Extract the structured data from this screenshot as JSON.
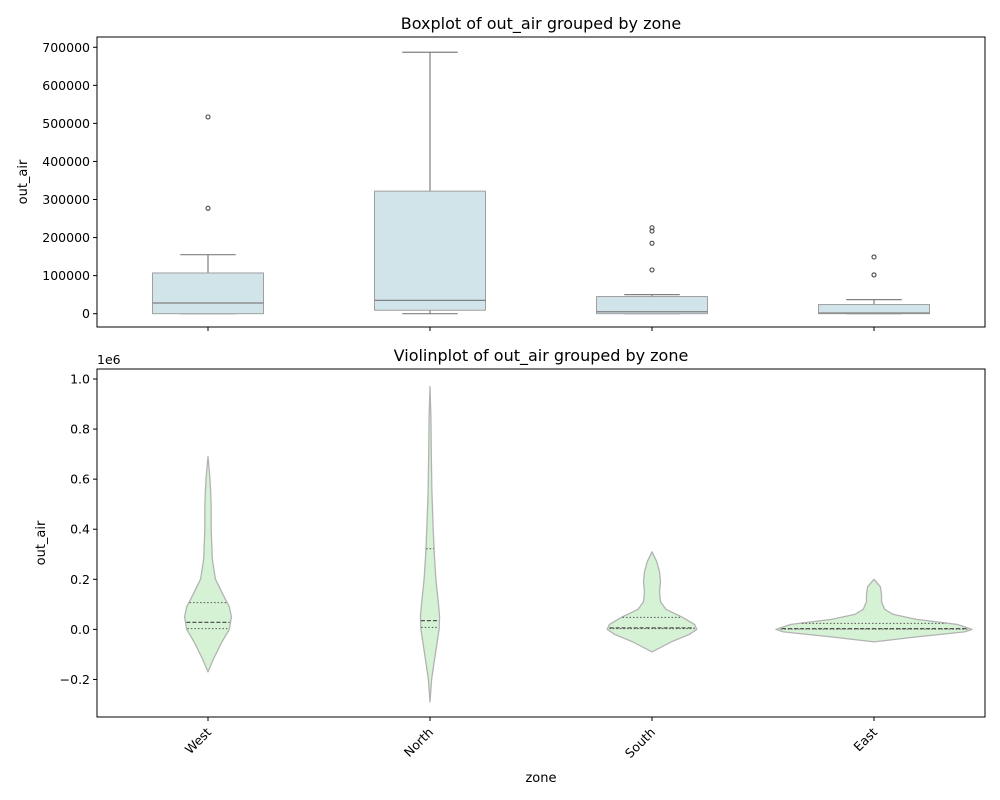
{
  "chart_data": [
    {
      "type": "box",
      "title": "Boxplot of out_air grouped by zone",
      "xlabel": "",
      "ylabel": "out_air",
      "categories": [
        "West",
        "North",
        "South",
        "East"
      ],
      "yticks": [
        "0",
        "100000",
        "200000",
        "300000",
        "400000",
        "500000",
        "600000",
        "700000"
      ],
      "ylim": [
        -35000,
        727000
      ],
      "grid": false,
      "box_color": "#d0e4ea",
      "edge_color": "#808080",
      "boxes": [
        {
          "category": "West",
          "whisker_low": 0,
          "q1": 0,
          "median": 28000,
          "q3": 107000,
          "whisker_high": 155000,
          "outliers": [
            277000,
            517000
          ]
        },
        {
          "category": "North",
          "whisker_low": 0,
          "q1": 9000,
          "median": 35000,
          "q3": 322000,
          "whisker_high": 687000,
          "outliers": []
        },
        {
          "category": "South",
          "whisker_low": 0,
          "q1": 0,
          "median": 5000,
          "q3": 45000,
          "whisker_high": 50000,
          "outliers": [
            115000,
            185000,
            217000,
            226000
          ]
        },
        {
          "category": "East",
          "whisker_low": 0,
          "q1": 0,
          "median": 2000,
          "q3": 24000,
          "whisker_high": 37000,
          "outliers": [
            102000,
            149000
          ]
        }
      ]
    },
    {
      "type": "violin",
      "title": "Violinplot of out_air grouped by zone",
      "xlabel": "zone",
      "ylabel": "out_air",
      "offset_label": "1e6",
      "categories": [
        "West",
        "North",
        "South",
        "East"
      ],
      "yticks": [
        "−0.2",
        "0.0",
        "0.2",
        "0.4",
        "0.6",
        "0.8",
        "1.0"
      ],
      "ylim": [
        -0.35,
        1.04
      ],
      "grid": false,
      "fill_color": "#d5f2d5",
      "edge_color": "#b3b3b3",
      "violins": [
        {
          "category": "West",
          "min": -0.17,
          "max": 0.69,
          "q1": 0.003,
          "median": 0.028,
          "q3": 0.107,
          "profile": [
            [
              -0.17,
              0.0
            ],
            [
              -0.12,
              0.05
            ],
            [
              -0.05,
              0.13
            ],
            [
              0.0,
              0.2
            ],
            [
              0.05,
              0.22
            ],
            [
              0.09,
              0.2
            ],
            [
              0.14,
              0.14
            ],
            [
              0.2,
              0.07
            ],
            [
              0.28,
              0.04
            ],
            [
              0.4,
              0.03
            ],
            [
              0.48,
              0.03
            ],
            [
              0.55,
              0.025
            ],
            [
              0.62,
              0.015
            ],
            [
              0.69,
              0.0
            ]
          ]
        },
        {
          "category": "North",
          "min": -0.29,
          "max": 0.97,
          "q1": 0.008,
          "median": 0.035,
          "q3": 0.322,
          "profile": [
            [
              -0.29,
              0.0
            ],
            [
              -0.2,
              0.015
            ],
            [
              -0.1,
              0.05
            ],
            [
              0.0,
              0.085
            ],
            [
              0.05,
              0.09
            ],
            [
              0.1,
              0.08
            ],
            [
              0.2,
              0.055
            ],
            [
              0.3,
              0.04
            ],
            [
              0.4,
              0.03
            ],
            [
              0.55,
              0.018
            ],
            [
              0.7,
              0.012
            ],
            [
              0.85,
              0.008
            ],
            [
              0.97,
              0.0
            ]
          ]
        },
        {
          "category": "South",
          "min": -0.09,
          "max": 0.31,
          "q1": 0.003,
          "median": 0.006,
          "q3": 0.048,
          "profile": [
            [
              -0.09,
              0.0
            ],
            [
              -0.05,
              0.18
            ],
            [
              -0.02,
              0.35
            ],
            [
              0.0,
              0.42
            ],
            [
              0.02,
              0.4
            ],
            [
              0.05,
              0.28
            ],
            [
              0.08,
              0.13
            ],
            [
              0.11,
              0.08
            ],
            [
              0.15,
              0.07
            ],
            [
              0.19,
              0.08
            ],
            [
              0.23,
              0.07
            ],
            [
              0.27,
              0.045
            ],
            [
              0.31,
              0.0
            ]
          ]
        },
        {
          "category": "East",
          "min": -0.05,
          "max": 0.2,
          "q1": 0.001,
          "median": 0.003,
          "q3": 0.024,
          "profile": [
            [
              -0.05,
              0.0
            ],
            [
              -0.03,
              0.4
            ],
            [
              -0.01,
              0.85
            ],
            [
              0.0,
              0.92
            ],
            [
              0.02,
              0.78
            ],
            [
              0.04,
              0.4
            ],
            [
              0.06,
              0.18
            ],
            [
              0.08,
              0.1
            ],
            [
              0.11,
              0.07
            ],
            [
              0.14,
              0.07
            ],
            [
              0.17,
              0.06
            ],
            [
              0.2,
              0.0
            ]
          ]
        }
      ]
    }
  ]
}
